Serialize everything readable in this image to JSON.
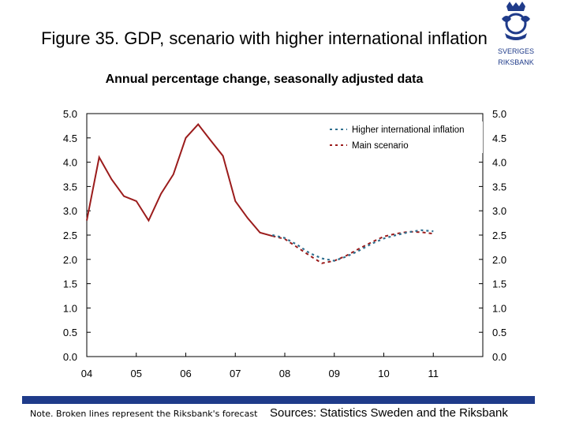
{
  "header": {
    "title": "Figure 35. GDP, scenario with higher international inflation",
    "subtitle": "Annual percentage change, seasonally adjusted data"
  },
  "logo": {
    "line1": "SVERIGES",
    "line2": "RIKSBANK"
  },
  "footer": {
    "note": "Note. Broken lines represent the Riksbank's forecast",
    "sources": "Sources: Statistics Sweden and the Riksbank"
  },
  "colors": {
    "main": "#9b1c1c",
    "higher": "#2f6f8f",
    "axis": "#000000",
    "brand": "#1f3b8a"
  },
  "chart_data": {
    "type": "line",
    "xlim": [
      2004.0,
      2012.0
    ],
    "ylim": [
      0.0,
      5.0
    ],
    "yticks": [
      "0.0",
      "0.5",
      "1.0",
      "1.5",
      "2.0",
      "2.5",
      "3.0",
      "3.5",
      "4.0",
      "4.5",
      "5.0"
    ],
    "xticks": [
      {
        "label": "04",
        "x": 2004.0
      },
      {
        "label": "05",
        "x": 2005.0
      },
      {
        "label": "06",
        "x": 2006.0
      },
      {
        "label": "07",
        "x": 2007.0
      },
      {
        "label": "08",
        "x": 2008.0
      },
      {
        "label": "09",
        "x": 2009.0
      },
      {
        "label": "10",
        "x": 2010.0
      },
      {
        "label": "11",
        "x": 2011.0
      }
    ],
    "legend_position": "top-right",
    "series": [
      {
        "name": "Higher international inflation",
        "style": "dashed",
        "x": [
          2007.75,
          2008.0,
          2008.25,
          2008.5,
          2008.75,
          2009.0,
          2009.25,
          2009.5,
          2009.75,
          2010.0,
          2010.25,
          2010.5,
          2010.75,
          2011.0
        ],
        "y": [
          2.5,
          2.44,
          2.3,
          2.13,
          2.02,
          1.97,
          2.06,
          2.18,
          2.32,
          2.43,
          2.5,
          2.56,
          2.6,
          2.58
        ]
      },
      {
        "name": "Main scenario",
        "style": "solid-then-dashed",
        "x": [
          2004.0,
          2004.25,
          2004.5,
          2004.75,
          2005.0,
          2005.25,
          2005.5,
          2005.75,
          2006.0,
          2006.25,
          2006.5,
          2006.75,
          2007.0,
          2007.25,
          2007.5,
          2007.75,
          2008.0,
          2008.25,
          2008.5,
          2008.75,
          2009.0,
          2009.25,
          2009.5,
          2009.75,
          2010.0,
          2010.25,
          2010.5,
          2010.75,
          2011.0
        ],
        "y": [
          2.8,
          4.1,
          3.65,
          3.3,
          3.2,
          2.8,
          3.35,
          3.75,
          4.5,
          4.78,
          4.45,
          4.13,
          3.2,
          2.85,
          2.55,
          2.48,
          2.42,
          2.25,
          2.08,
          1.92,
          1.97,
          2.08,
          2.22,
          2.35,
          2.47,
          2.53,
          2.57,
          2.56,
          2.53
        ],
        "forecast_from": 2007.75
      }
    ]
  }
}
